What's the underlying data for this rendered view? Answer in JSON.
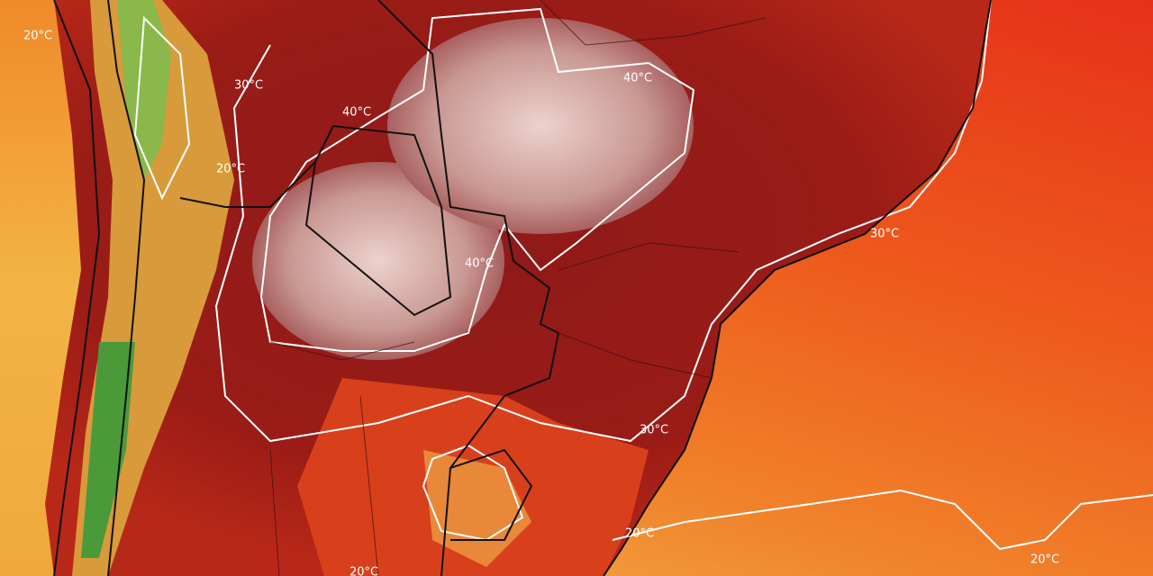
{
  "map": {
    "labels": [
      {
        "text": "20°C"
      },
      {
        "text": "30°C"
      },
      {
        "text": "40°C"
      },
      {
        "text": "20°C"
      },
      {
        "text": "40°C"
      },
      {
        "text": "40°C"
      },
      {
        "text": "30°C"
      },
      {
        "text": "30°C"
      },
      {
        "text": "20°C"
      },
      {
        "text": "20°C"
      },
      {
        "text": "20°C"
      }
    ]
  }
}
